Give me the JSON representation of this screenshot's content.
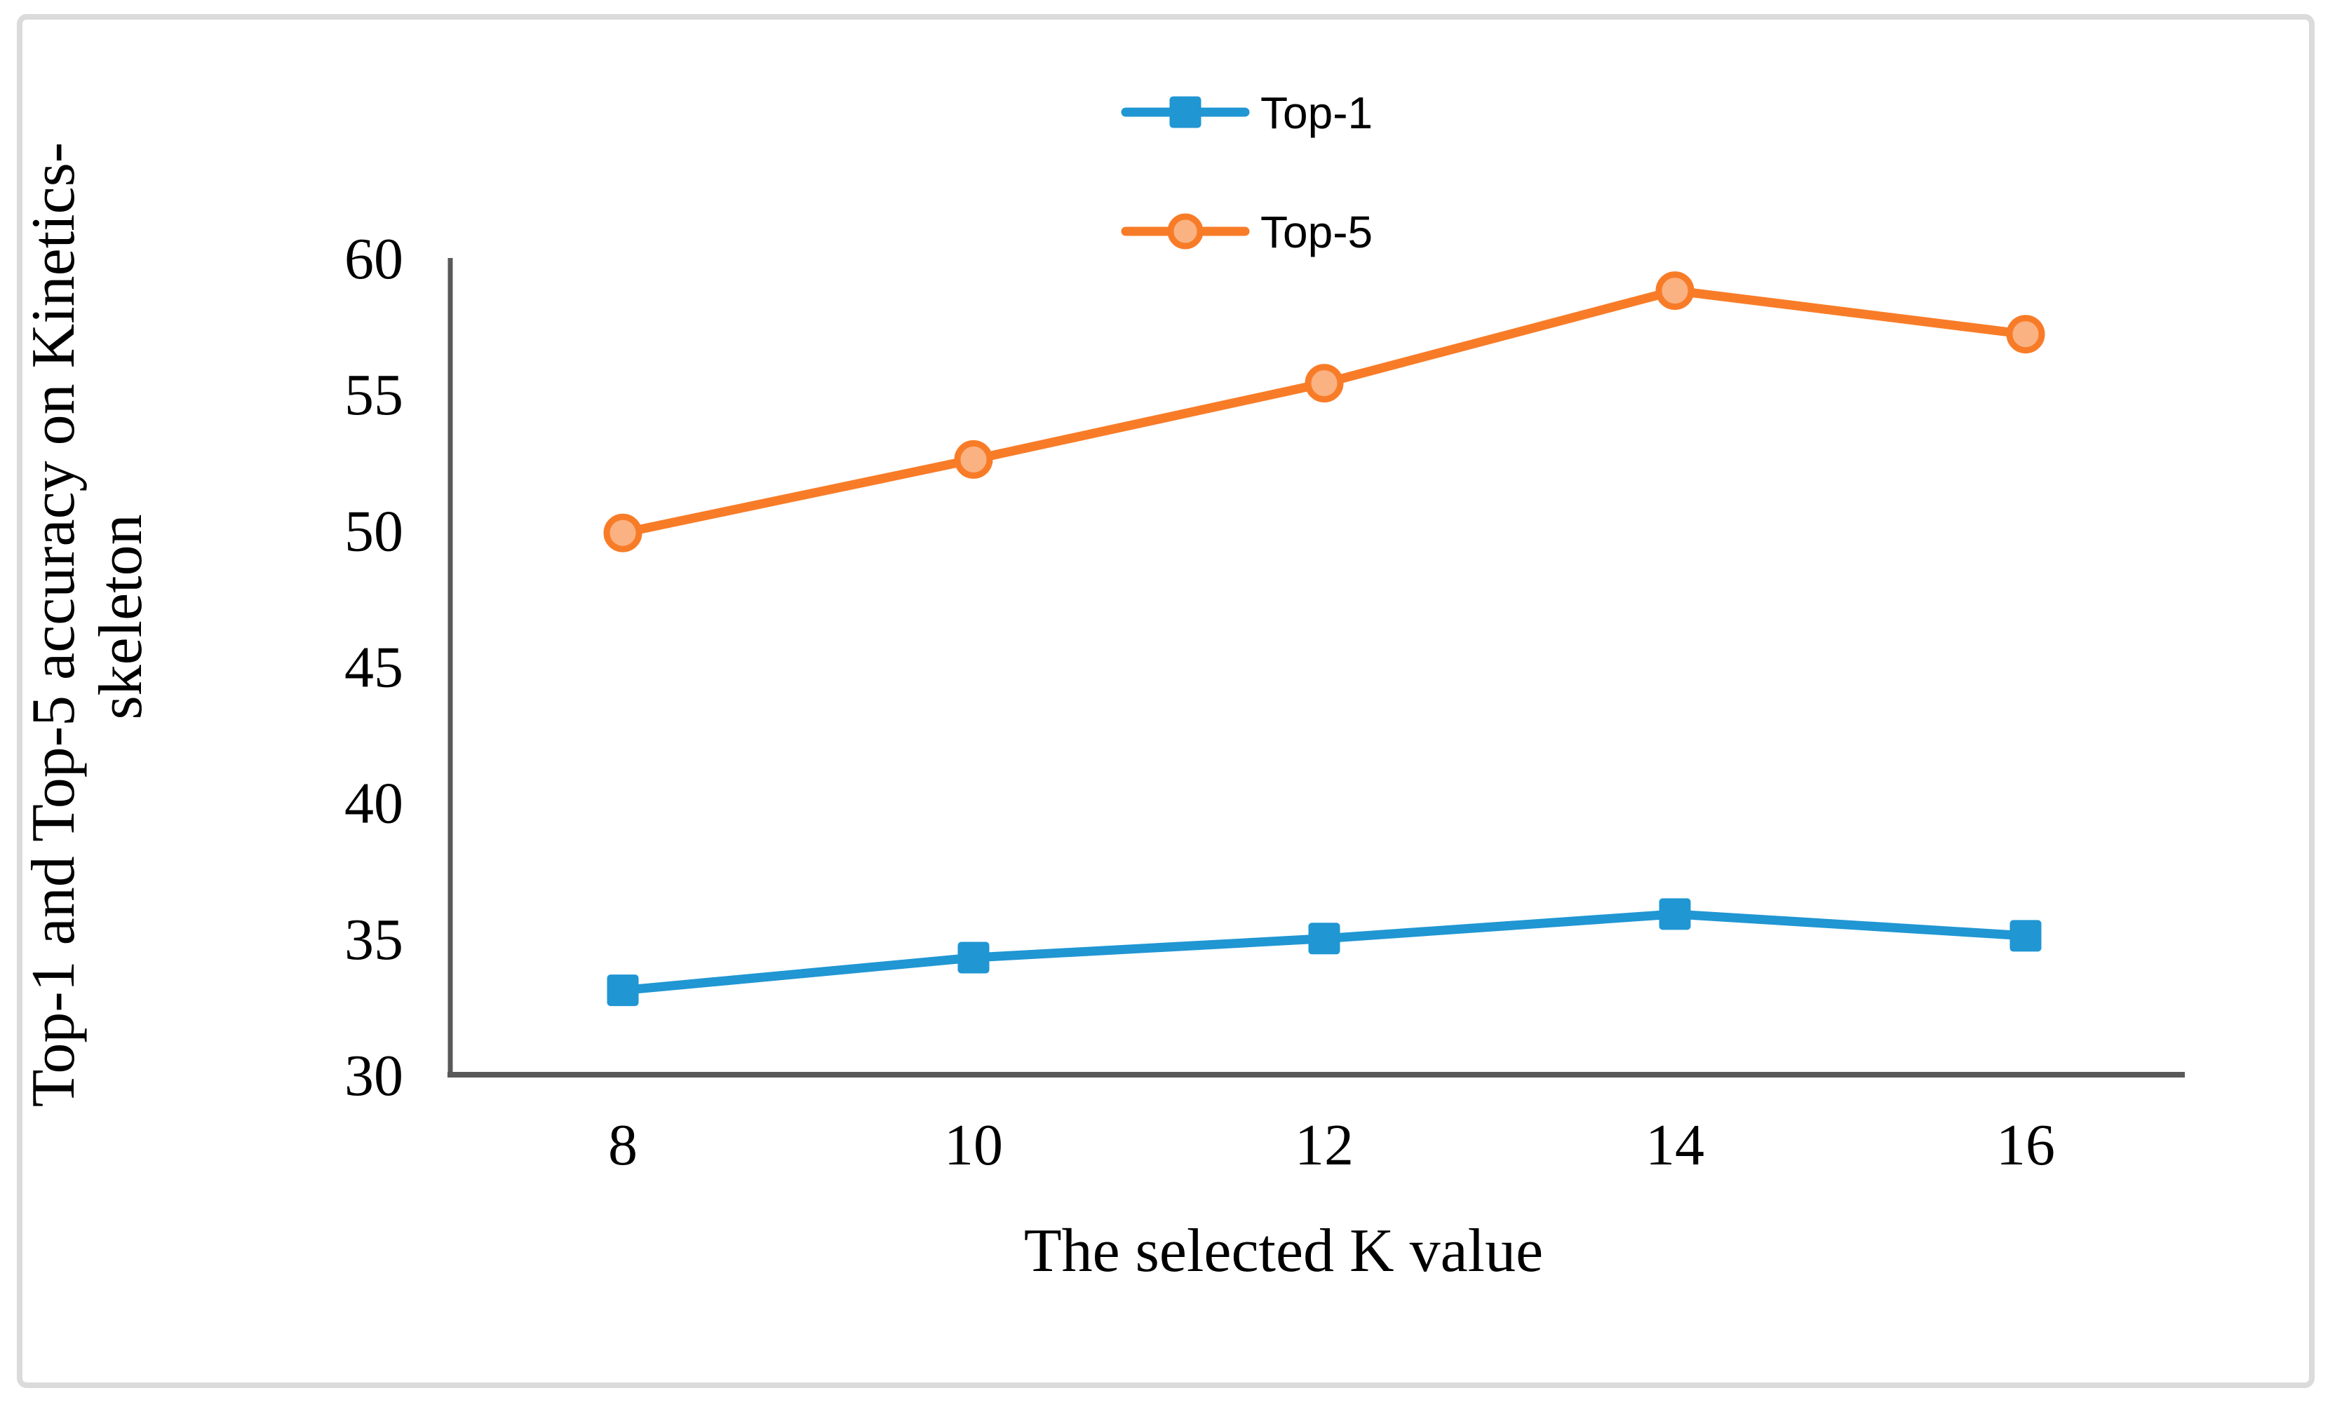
{
  "figure": {
    "background_color": "#ffffff",
    "border_color": "#dbdbdb",
    "axis_line_color": "#595959",
    "text_color": "#000000"
  },
  "chart_data": {
    "type": "line",
    "title": "",
    "xlabel": "The selected K value",
    "ylabel": "Top-1 and Top-5 accuracy on Kinetics-skeleton",
    "ylabel_lines": [
      "Top-1 and Top-5 accuracy on Kinetics-",
      "skeleton"
    ],
    "categories": [
      "8",
      "10",
      "12",
      "14",
      "16"
    ],
    "series": [
      {
        "name": "Top-1",
        "marker": "square",
        "color": "#2096d3",
        "marker_fill": "#2096d3",
        "values": [
          33.1,
          34.3,
          35.0,
          35.9,
          35.1
        ]
      },
      {
        "name": "Top-5",
        "marker": "circle",
        "color": "#f87c28",
        "marker_fill": "#fbb282",
        "values": [
          49.9,
          52.6,
          55.4,
          58.8,
          57.2
        ]
      }
    ],
    "ylim": [
      30,
      60
    ],
    "yticks": [
      30,
      35,
      40,
      45,
      50,
      55,
      60
    ],
    "ytick_step": 5,
    "grid": false,
    "legend_position": "top-center"
  }
}
